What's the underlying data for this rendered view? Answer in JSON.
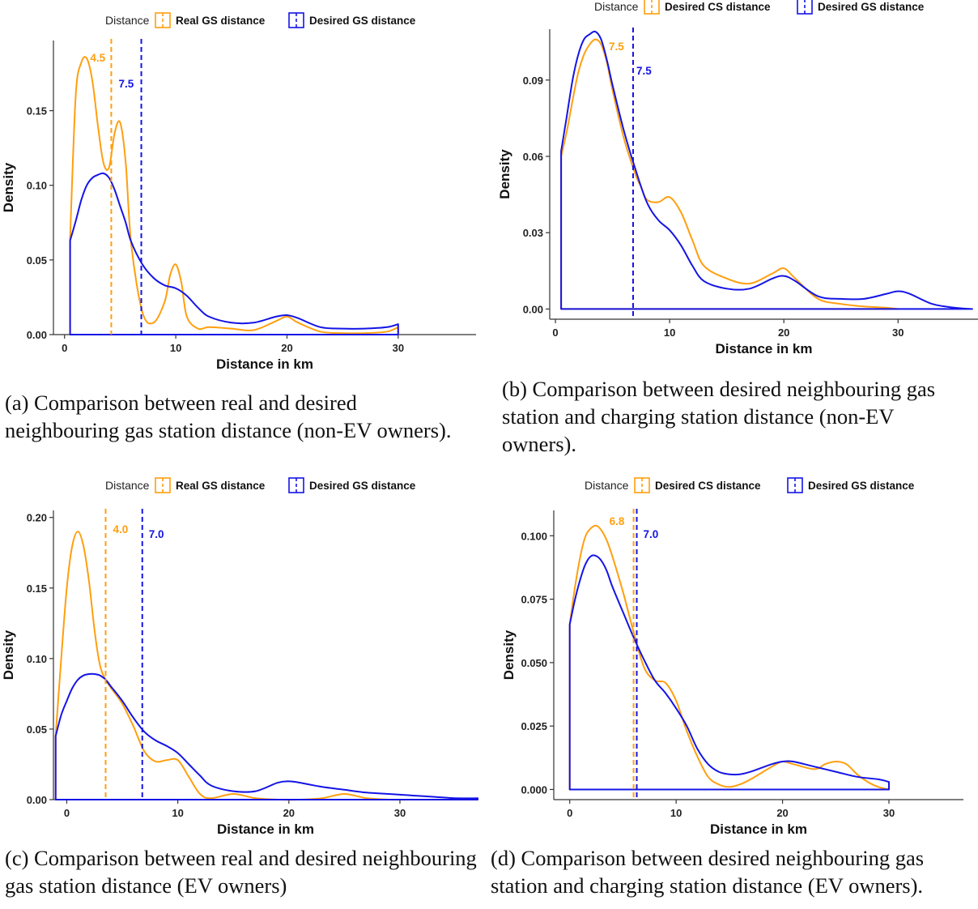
{
  "colors": {
    "orange": "#FF9F0F",
    "blue": "#1414E6",
    "axis": "#333333"
  },
  "panels": [
    {
      "id": "a",
      "caption": "(a) Comparison between real and desired neighbouring gas station distance (non-EV owners).",
      "legend": {
        "title": "Distance",
        "items": [
          {
            "label": "Real GS distance",
            "color": "#FF9F0F"
          },
          {
            "label": "Desired GS distance",
            "color": "#1414E6"
          }
        ]
      },
      "chart_data": {
        "type": "line",
        "xlabel": "Distance in km",
        "ylabel": "Density",
        "xlim": [
          -1,
          37
        ],
        "ylim": [
          0,
          0.197
        ],
        "xticks": [
          0,
          10,
          20,
          30
        ],
        "yticks": [
          0.0,
          0.05,
          0.1,
          0.15
        ],
        "ytick_labels": [
          "0.00",
          "0.05",
          "0.10",
          "0.15"
        ],
        "series": [
          {
            "name": "Real GS distance",
            "color": "#FF9F0F",
            "x": [
              0.5,
              1,
              1.5,
              2,
              2.5,
              3,
              3.5,
              4,
              4.5,
              5,
              5.5,
              6,
              7,
              8,
              9,
              9.5,
              10,
              10.5,
              11,
              12,
              13,
              15,
              17,
              19,
              20,
              21,
              23,
              25,
              27,
              29,
              30
            ],
            "y": [
              0.065,
              0.16,
              0.182,
              0.185,
              0.17,
              0.14,
              0.115,
              0.112,
              0.135,
              0.142,
              0.115,
              0.06,
              0.015,
              0.008,
              0.022,
              0.04,
              0.047,
              0.035,
              0.012,
              0.004,
              0.005,
              0.004,
              0.003,
              0.009,
              0.012,
              0.008,
              0.002,
              0.001,
              0.001,
              0.002,
              0.005
            ]
          },
          {
            "name": "Desired GS distance",
            "color": "#1414E6",
            "x": [
              0.5,
              1,
              1.5,
              2,
              2.5,
              3,
              3.5,
              4,
              4.5,
              5,
              5.5,
              6,
              7,
              8,
              9,
              10,
              11,
              12,
              13,
              15,
              17,
              19,
              20,
              21,
              23,
              25,
              27,
              29,
              30
            ],
            "y": [
              0.063,
              0.076,
              0.09,
              0.1,
              0.105,
              0.107,
              0.108,
              0.105,
              0.097,
              0.086,
              0.075,
              0.062,
              0.047,
              0.038,
              0.033,
              0.031,
              0.026,
              0.018,
              0.012,
              0.008,
              0.008,
              0.012,
              0.013,
              0.011,
              0.005,
              0.004,
              0.004,
              0.005,
              0.007
            ]
          }
        ],
        "vlines": [
          {
            "x": 4.2,
            "label": "4.5",
            "color": "#FF9F0F"
          },
          {
            "x": 6.9,
            "label": "7.5",
            "color": "#1414E6"
          }
        ]
      }
    },
    {
      "id": "b",
      "caption": "(b) Comparison between desired neighbouring gas station and charging station distance (non-EV owners).",
      "legend": {
        "title": "Distance",
        "items": [
          {
            "label": "Desired CS distance",
            "color": "#FF9F0F"
          },
          {
            "label": "Desired GS distance",
            "color": "#1414E6"
          }
        ]
      },
      "chart_data": {
        "type": "line",
        "xlabel": "Distance in km",
        "ylabel": "Density",
        "xlim": [
          -0.5,
          37
        ],
        "ylim": [
          -0.004,
          0.11
        ],
        "xticks": [
          0,
          10,
          20,
          30
        ],
        "yticks": [
          0.0,
          0.03,
          0.06,
          0.09
        ],
        "ytick_labels": [
          "0.00",
          "0.03",
          "0.06",
          "0.09"
        ],
        "series": [
          {
            "name": "Desired CS distance",
            "color": "#FF9F0F",
            "x": [
              0.5,
              1,
              1.5,
              2,
              2.5,
              3,
              3.5,
              4,
              4.5,
              5,
              6,
              7,
              7.5,
              8,
              9,
              10,
              11,
              12,
              13,
              15,
              17,
              19,
              20,
              21,
              23,
              25,
              27,
              29,
              30
            ],
            "y": [
              0.06,
              0.07,
              0.082,
              0.093,
              0.1,
              0.104,
              0.106,
              0.104,
              0.097,
              0.086,
              0.067,
              0.053,
              0.048,
              0.043,
              0.042,
              0.044,
              0.038,
              0.027,
              0.017,
              0.012,
              0.01,
              0.014,
              0.016,
              0.012,
              0.004,
              0.002,
              0.001,
              0.0005,
              0
            ]
          },
          {
            "name": "Desired GS distance",
            "color": "#1414E6",
            "x": [
              0.5,
              1,
              1.5,
              2,
              2.5,
              3,
              3.5,
              4,
              4.5,
              5,
              6,
              7,
              8,
              9,
              10,
              11,
              12,
              13,
              15,
              17,
              19,
              20,
              21,
              23,
              25,
              27,
              29,
              30,
              31,
              33,
              35,
              36.5
            ],
            "y": [
              0.062,
              0.076,
              0.09,
              0.1,
              0.106,
              0.108,
              0.109,
              0.106,
              0.098,
              0.088,
              0.07,
              0.055,
              0.042,
              0.035,
              0.031,
              0.025,
              0.017,
              0.011,
              0.008,
              0.008,
              0.012,
              0.013,
              0.011,
              0.005,
              0.004,
              0.004,
              0.006,
              0.007,
              0.006,
              0.002,
              0.0005,
              0
            ]
          }
        ],
        "vlines": [
          {
            "x": 6.8,
            "label": "7.5",
            "color": "#FF9F0F"
          },
          {
            "x": 6.8,
            "label": "7.5",
            "color": "#1414E6"
          }
        ]
      }
    },
    {
      "id": "c",
      "caption": "(c) Comparison between real and desired neighbouring gas station distance (EV owners)",
      "legend": {
        "title": "Distance",
        "items": [
          {
            "label": "Real GS distance",
            "color": "#FF9F0F"
          },
          {
            "label": "Desired GS distance",
            "color": "#1414E6"
          }
        ]
      },
      "chart_data": {
        "type": "line",
        "xlabel": "Distance in km",
        "ylabel": "Density",
        "xlim": [
          -1.2,
          37
        ],
        "ylim": [
          0,
          0.205
        ],
        "xticks": [
          0,
          10,
          20,
          30
        ],
        "yticks": [
          0.0,
          0.05,
          0.1,
          0.15,
          0.2
        ],
        "ytick_labels": [
          "0.00",
          "0.05",
          "0.10",
          "0.15",
          "0.20"
        ],
        "series": [
          {
            "name": "Real GS distance",
            "color": "#FF9F0F",
            "x": [
              -1,
              -0.5,
              0,
              0.5,
              1,
              1.5,
              2,
              2.5,
              3,
              3.5,
              4,
              5,
              6,
              7,
              8,
              9,
              10,
              11,
              12,
              13,
              15,
              17,
              19,
              21,
              23,
              25,
              27,
              29,
              31,
              33,
              35,
              37
            ],
            "y": [
              0.045,
              0.1,
              0.15,
              0.18,
              0.19,
              0.18,
              0.155,
              0.12,
              0.095,
              0.085,
              0.079,
              0.068,
              0.052,
              0.034,
              0.027,
              0.028,
              0.028,
              0.016,
              0.004,
              0.001,
              0.004,
              0.001,
              0,
              0,
              0.001,
              0.004,
              0.001,
              0,
              0,
              0,
              0,
              0
            ]
          },
          {
            "name": "Desired GS distance",
            "color": "#1414E6",
            "x": [
              -1,
              -0.5,
              0,
              0.5,
              1,
              1.5,
              2,
              2.5,
              3,
              3.5,
              4,
              5,
              6,
              7,
              8,
              9,
              10,
              11,
              12,
              13,
              15,
              17,
              19,
              20,
              21,
              23,
              25,
              27,
              29,
              31,
              33,
              35,
              37
            ],
            "y": [
              0.045,
              0.06,
              0.07,
              0.079,
              0.085,
              0.088,
              0.089,
              0.089,
              0.088,
              0.085,
              0.08,
              0.07,
              0.058,
              0.048,
              0.042,
              0.038,
              0.033,
              0.025,
              0.017,
              0.01,
              0.006,
              0.006,
              0.012,
              0.013,
              0.012,
              0.009,
              0.007,
              0.005,
              0.004,
              0.003,
              0.002,
              0.001,
              0.001
            ]
          }
        ],
        "vlines": [
          {
            "x": 3.5,
            "label": "4.0",
            "color": "#FF9F0F"
          },
          {
            "x": 6.8,
            "label": "7.0",
            "color": "#1414E6"
          }
        ]
      }
    },
    {
      "id": "d",
      "caption": "(d) Comparison between desired neighbouring gas station and charging station distance (EV owners).",
      "legend": {
        "title": "Distance",
        "items": [
          {
            "label": "Desired CS distance",
            "color": "#FF9F0F"
          },
          {
            "label": "Desired GS distance",
            "color": "#1414E6"
          }
        ]
      },
      "chart_data": {
        "type": "line",
        "xlabel": "Distance in km",
        "ylabel": "Density",
        "xlim": [
          -1.5,
          37
        ],
        "ylim": [
          -0.004,
          0.11
        ],
        "xticks": [
          0,
          10,
          20,
          30
        ],
        "yticks": [
          0.0,
          0.025,
          0.05,
          0.075,
          0.1
        ],
        "ytick_labels": [
          "0.000",
          "0.025",
          "0.050",
          "0.075",
          "0.100"
        ],
        "series": [
          {
            "name": "Desired CS distance",
            "color": "#FF9F0F",
            "x": [
              0,
              0.5,
              1,
              1.5,
              2,
              2.5,
              3,
              3.5,
              4,
              5,
              6,
              7,
              8,
              9,
              10,
              11,
              12,
              13,
              14,
              15,
              16,
              17,
              19,
              20,
              21,
              23,
              24,
              25,
              26,
              27,
              28,
              29,
              30
            ],
            "y": [
              0.065,
              0.08,
              0.092,
              0.1,
              0.103,
              0.104,
              0.102,
              0.098,
              0.092,
              0.078,
              0.062,
              0.048,
              0.043,
              0.042,
              0.035,
              0.023,
              0.013,
              0.005,
              0.002,
              0.001,
              0.002,
              0.004,
              0.009,
              0.011,
              0.01,
              0.008,
              0.01,
              0.011,
              0.01,
              0.006,
              0.003,
              0.001,
              0
            ]
          },
          {
            "name": "Desired GS distance",
            "color": "#1414E6",
            "x": [
              0,
              0.5,
              1,
              1.5,
              2,
              2.5,
              3,
              3.5,
              4,
              5,
              6,
              7,
              8,
              9,
              10,
              11,
              12,
              13,
              14,
              15,
              16,
              17,
              19,
              20,
              21,
              23,
              25,
              27,
              29,
              30
            ],
            "y": [
              0.065,
              0.075,
              0.083,
              0.089,
              0.092,
              0.092,
              0.09,
              0.086,
              0.08,
              0.07,
              0.06,
              0.051,
              0.043,
              0.038,
              0.032,
              0.025,
              0.016,
              0.01,
              0.007,
              0.006,
              0.006,
              0.007,
              0.01,
              0.011,
              0.011,
              0.009,
              0.007,
              0.005,
              0.004,
              0.003
            ]
          }
        ],
        "vlines": [
          {
            "x": 6.0,
            "label": "6.8",
            "color": "#FF9F0F"
          },
          {
            "x": 6.3,
            "label": "7.0",
            "color": "#1414E6"
          }
        ]
      }
    }
  ]
}
